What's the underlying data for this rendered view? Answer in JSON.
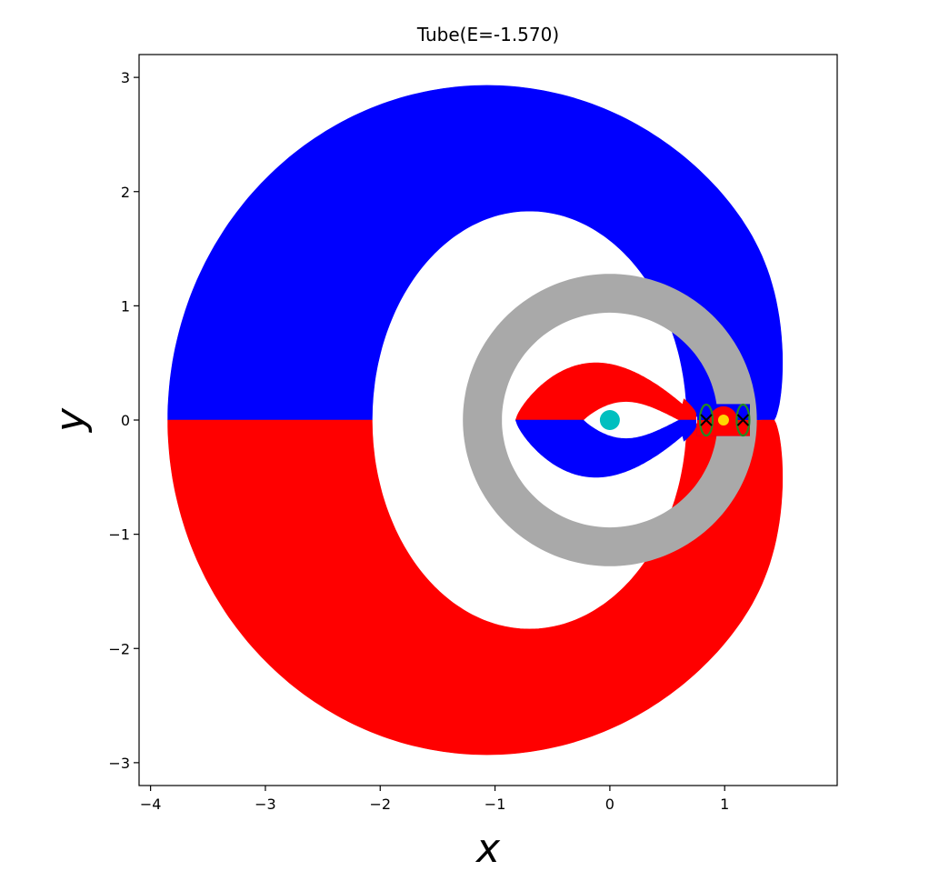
{
  "chart_data": {
    "type": "area",
    "title": "Tube(E=-1.570)",
    "xlabel": "x",
    "ylabel": "y",
    "xlim": [
      -4.1,
      1.98
    ],
    "ylim": [
      -3.2,
      3.2
    ],
    "xticks": [
      -4,
      -3,
      -2,
      -1,
      0,
      1
    ],
    "yticks": [
      -3,
      -2,
      -1,
      0,
      1,
      2,
      3
    ],
    "xtick_labels": [
      "−4",
      "−3",
      "−2",
      "−1",
      "0",
      "1"
    ],
    "ytick_labels": [
      "−3",
      "−2",
      "−1",
      "0",
      "1",
      "2",
      "3"
    ],
    "grid": false,
    "legend": "none",
    "colors": {
      "outer_upper": "#0000ff",
      "outer_lower": "#ff0000",
      "middle_ring": "#a9a9a9",
      "inner_upper": "#ff0000",
      "inner_lower": "#0000ff",
      "central_body": "#00bfbf",
      "secondary_body": "#ffd700",
      "lagrange_marker": "#000000",
      "lagrange_ring": "#228b22"
    },
    "regions": {
      "outer_upper_band": {
        "x_range": [
          -3.85,
          1.72
        ],
        "y_range": [
          0,
          2.93
        ]
      },
      "outer_lower_band": {
        "x_range": [
          -3.85,
          1.72
        ],
        "y_range": [
          -2.93,
          0
        ]
      },
      "middle_ring": {
        "center": [
          0,
          0
        ],
        "inner_radius": 0.94,
        "outer_radius": 1.28
      },
      "inner_upper_band": {
        "x_range": [
          -0.82,
          1.15
        ],
        "y_range": [
          0,
          0.6
        ]
      },
      "inner_lower_band": {
        "x_range": [
          -0.82,
          1.15
        ],
        "y_range": [
          -0.6,
          0
        ]
      }
    },
    "markers": [
      {
        "name": "primary",
        "x": 0.0,
        "y": 0.0,
        "color": "#00bfbf"
      },
      {
        "name": "secondary",
        "x": 0.99,
        "y": 0.0,
        "color": "#ffd700"
      },
      {
        "name": "L1",
        "x": 0.84,
        "y": 0.0,
        "color": "#000000"
      },
      {
        "name": "L2",
        "x": 1.16,
        "y": 0.0,
        "color": "#000000"
      }
    ]
  }
}
